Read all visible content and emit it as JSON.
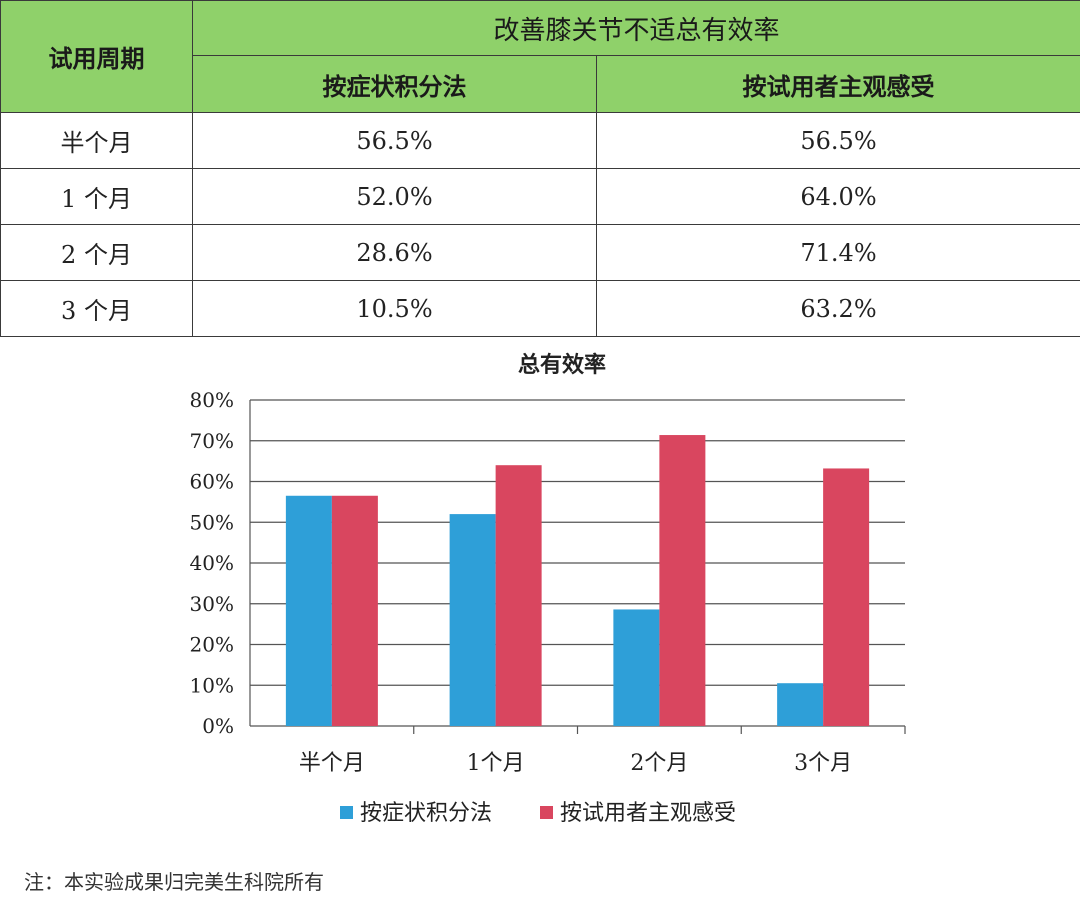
{
  "table": {
    "header_period": "试用周期",
    "header_group": "改善膝关节不适总有效率",
    "header_col1": "按症状积分法",
    "header_col2": "按试用者主观感受",
    "rows": [
      {
        "period": "半个月",
        "col1": "56.5%",
        "col2": "56.5%"
      },
      {
        "period": "1 个月",
        "col1": "52.0%",
        "col2": "64.0%"
      },
      {
        "period": "2 个月",
        "col1": "28.6%",
        "col2": "71.4%"
      },
      {
        "period": "3 个月",
        "col1": "10.5%",
        "col2": "63.2%"
      }
    ]
  },
  "chart_data": {
    "type": "bar",
    "title": "总有效率",
    "categories": [
      "半个月",
      "1个月",
      "2个月",
      "3个月"
    ],
    "series": [
      {
        "name": "按症状积分法",
        "values": [
          56.5,
          52.0,
          28.6,
          10.5
        ],
        "color": "#2e9fd8"
      },
      {
        "name": "按试用者主观感受",
        "values": [
          56.5,
          64.0,
          71.4,
          63.2
        ],
        "color": "#d9465f"
      }
    ],
    "ylim": [
      0,
      80
    ],
    "yticks": [
      "0%",
      "10%",
      "20%",
      "30%",
      "40%",
      "50%",
      "60%",
      "70%",
      "80%"
    ],
    "grid": true,
    "legend_position": "bottom"
  },
  "footnote": "注：本实验成果归完美生科院所有"
}
